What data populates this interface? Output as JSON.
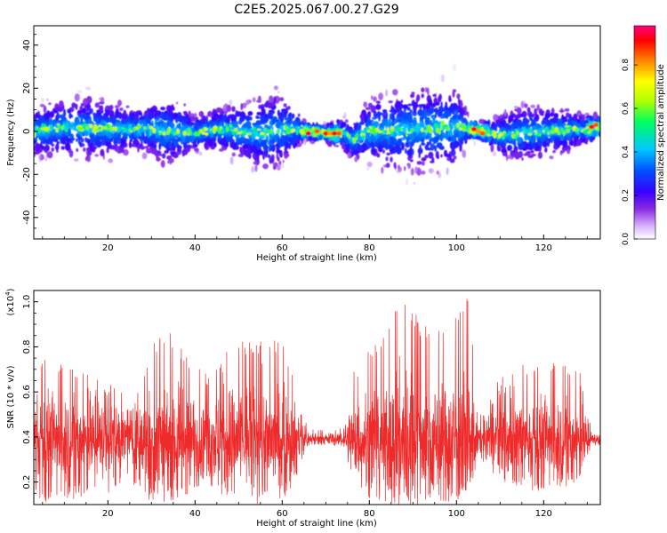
{
  "figure": {
    "title": "C2E5.2025.067.00.27.G29"
  },
  "chart_data": [
    {
      "type": "heatmap",
      "title": "",
      "xlabel": "Height of straight line (km)",
      "ylabel": "Frequency (Hz)",
      "xlim": [
        3,
        133
      ],
      "ylim": [
        -50,
        49
      ],
      "xticks": [
        20,
        40,
        60,
        80,
        100,
        120
      ],
      "yticks": [
        -40,
        -20,
        0,
        20,
        40
      ],
      "grid": false,
      "colorbar": {
        "label": "Normalized spectral amplitude",
        "range": [
          0.0,
          0.98
        ],
        "ticks": [
          "0.0",
          "0.2",
          "0.4",
          "0.6",
          "0.8"
        ],
        "colormap": [
          "#ffffff",
          "#d9b3ff",
          "#8a2be2",
          "#3a00ff",
          "#0050ff",
          "#00c8ff",
          "#00ff60",
          "#b4ff00",
          "#ffff00",
          "#ff8000",
          "#ff0000",
          "#ff0080"
        ]
      },
      "center_frequency_track": {
        "x": [
          3,
          10,
          20,
          30,
          40,
          45,
          50,
          55,
          60,
          63,
          66,
          70,
          74,
          76,
          80,
          90,
          100,
          103,
          106,
          110,
          120,
          130,
          133
        ],
        "y": [
          0,
          2,
          1,
          1,
          -1,
          1,
          0,
          -1,
          1,
          1,
          0,
          -1,
          -1,
          -4,
          0,
          1,
          2,
          1,
          0,
          -2,
          0,
          1,
          2
        ]
      },
      "spread_hz": {
        "x": [
          3,
          10,
          15,
          20,
          25,
          30,
          33,
          37,
          40,
          45,
          50,
          55,
          58,
          62,
          65,
          70,
          75,
          80,
          85,
          90,
          95,
          100,
          103,
          106,
          110,
          115,
          120,
          125,
          130,
          133
        ],
        "halfwidth": [
          14,
          16,
          18,
          16,
          12,
          15,
          20,
          16,
          10,
          12,
          15,
          20,
          22,
          16,
          5,
          4,
          10,
          18,
          22,
          24,
          24,
          24,
          6,
          5,
          12,
          16,
          15,
          13,
          8,
          6
        ]
      },
      "hotspots": {
        "x": [
          66,
          68,
          70,
          71,
          72,
          73,
          104,
          105,
          106,
          131,
          132
        ],
        "y": [
          -1,
          0,
          -1,
          -1,
          -1,
          -1,
          1,
          0,
          -1,
          2,
          3
        ],
        "value": [
          0.95,
          0.85,
          0.9,
          0.8,
          0.9,
          0.85,
          0.9,
          0.8,
          0.85,
          0.9,
          0.85
        ]
      }
    },
    {
      "type": "line",
      "title": "",
      "xlabel": "Height of straight line (km)",
      "ylabel": "SNR (10 * v/v)",
      "y_multiplier": "(x10",
      "y_multiplier_exp": "4",
      "y_multiplier_close": ")",
      "xlim": [
        3,
        133
      ],
      "ylim": [
        0.1,
        1.05
      ],
      "xticks": [
        20,
        40,
        60,
        80,
        100,
        120
      ],
      "yticks": [
        "0.2",
        "0.4",
        "0.6",
        "0.8",
        "1.0"
      ],
      "ytick_values": [
        0.2,
        0.4,
        0.6,
        0.8,
        1.0
      ],
      "grid": false,
      "line_color": "#ee2a2a",
      "series": [
        {
          "mean": 0.39,
          "envelope_x": [
            3,
            5,
            10,
            15,
            20,
            25,
            28,
            31,
            34,
            38,
            42,
            46,
            52,
            57,
            61,
            64,
            66,
            70,
            74,
            76,
            80,
            84,
            88,
            92,
            96,
            100,
            103,
            105,
            110,
            115,
            120,
            125,
            129,
            131,
            133
          ],
          "envelope_upper": [
            0.56,
            0.78,
            0.72,
            0.68,
            0.65,
            0.57,
            0.68,
            0.85,
            0.88,
            0.8,
            0.68,
            0.76,
            0.84,
            0.86,
            0.8,
            0.56,
            0.45,
            0.44,
            0.45,
            0.7,
            0.8,
            0.9,
            1.05,
            0.9,
            0.9,
            0.98,
            1.05,
            0.53,
            0.66,
            0.72,
            0.75,
            0.72,
            0.68,
            0.43,
            0.43
          ],
          "envelope_lower": [
            0.18,
            0.1,
            0.12,
            0.13,
            0.15,
            0.2,
            0.14,
            0.1,
            0.12,
            0.13,
            0.2,
            0.12,
            0.1,
            0.11,
            0.14,
            0.24,
            0.35,
            0.36,
            0.36,
            0.2,
            0.13,
            0.1,
            0.08,
            0.1,
            0.12,
            0.11,
            0.15,
            0.3,
            0.2,
            0.17,
            0.15,
            0.18,
            0.2,
            0.35,
            0.36
          ]
        }
      ]
    }
  ]
}
